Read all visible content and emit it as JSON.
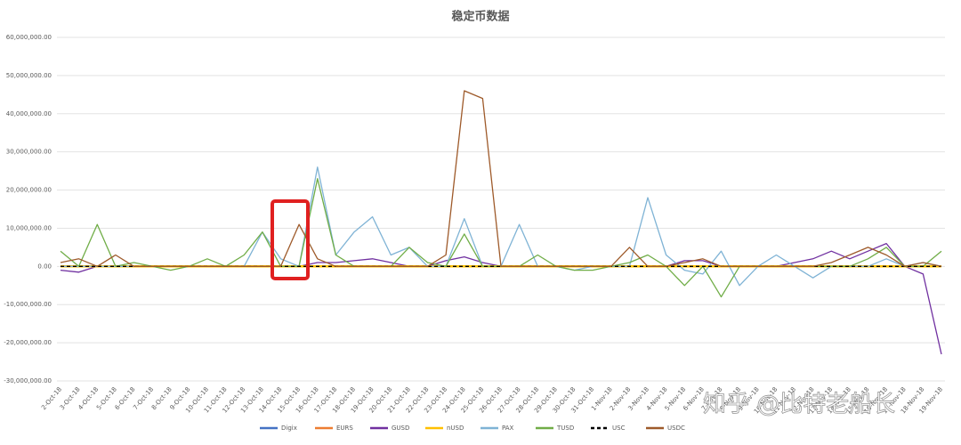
{
  "chart_data": {
    "type": "line",
    "title": "稳定币数据",
    "annotation": "知乎 @比特老船长",
    "categories": [
      "2-Oct-18",
      "3-Oct-18",
      "4-Oct-18",
      "5-Oct-18",
      "6-Oct-18",
      "7-Oct-18",
      "8-Oct-18",
      "9-Oct-18",
      "10-Oct-18",
      "11-Oct-18",
      "12-Oct-18",
      "13-Oct-18",
      "14-Oct-18",
      "15-Oct-18",
      "16-Oct-18",
      "17-Oct-18",
      "18-Oct-18",
      "19-Oct-18",
      "20-Oct-18",
      "21-Oct-18",
      "22-Oct-18",
      "23-Oct-18",
      "24-Oct-18",
      "25-Oct-18",
      "26-Oct-18",
      "27-Oct-18",
      "28-Oct-18",
      "29-Oct-18",
      "30-Oct-18",
      "31-Oct-18",
      "1-Nov-18",
      "2-Nov-18",
      "3-Nov-18",
      "4-Nov-18",
      "5-Nov-18",
      "6-Nov-18",
      "7-Nov-18",
      "8-Nov-18",
      "9-Nov-18",
      "10-Nov-18",
      "11-Nov-18",
      "12-Nov-18",
      "13-Nov-18",
      "14-Nov-18",
      "15-Nov-18",
      "16-Nov-18",
      "17-Nov-18",
      "18-Nov-18",
      "19-Nov-18"
    ],
    "series": [
      {
        "name": "Digix",
        "color": "#4472c4",
        "values": [
          0,
          0,
          0,
          0,
          0,
          0,
          0,
          0,
          0,
          0,
          0,
          0,
          0,
          0,
          0,
          0,
          0,
          0,
          0,
          0,
          0,
          0,
          0,
          0,
          0,
          0,
          0,
          0,
          0,
          0,
          0,
          0,
          0,
          0,
          0,
          0,
          0,
          0,
          0,
          0,
          0,
          0,
          0,
          0,
          0,
          0,
          0,
          0,
          0
        ]
      },
      {
        "name": "EURS",
        "color": "#ed7d31",
        "values": [
          0,
          0,
          0,
          0,
          0,
          0,
          0,
          0,
          0,
          0,
          0,
          0,
          0,
          0,
          0,
          0,
          0,
          0,
          0,
          0,
          0,
          0,
          0,
          0,
          0,
          0,
          0,
          0,
          0,
          0,
          0,
          0,
          0,
          0,
          0,
          0,
          0,
          0,
          0,
          0,
          0,
          0,
          0,
          0,
          0,
          0,
          0,
          0,
          0
        ]
      },
      {
        "name": "GUSD",
        "color": "#7030a0",
        "values": [
          -1000000,
          -1500000,
          0,
          0,
          0,
          0,
          0,
          0,
          0,
          0,
          0,
          0,
          0,
          0,
          1000000,
          1000000,
          1500000,
          2000000,
          1000000,
          0,
          0,
          1500000,
          2500000,
          1000000,
          0,
          0,
          0,
          0,
          0,
          0,
          0,
          0,
          0,
          0,
          1500000,
          1500000,
          0,
          0,
          0,
          0,
          1000000,
          2000000,
          4000000,
          2000000,
          4000000,
          6000000,
          0,
          -2000000,
          -23000000
        ]
      },
      {
        "name": "nUSD",
        "color": "#ffc000",
        "values": [
          0,
          0,
          0,
          0,
          0,
          0,
          0,
          0,
          0,
          0,
          0,
          0,
          0,
          0,
          0,
          0,
          0,
          0,
          0,
          0,
          0,
          0,
          0,
          0,
          0,
          0,
          0,
          0,
          0,
          0,
          0,
          0,
          0,
          0,
          0,
          0,
          0,
          0,
          0,
          0,
          0,
          0,
          0,
          0,
          0,
          0,
          0,
          0,
          0
        ]
      },
      {
        "name": "PAX",
        "color": "#7fb3d5",
        "values": [
          0,
          0,
          0,
          0,
          0,
          0,
          0,
          0,
          0,
          0,
          0,
          9000000,
          2000000,
          0,
          26000000,
          3000000,
          9000000,
          13000000,
          3000000,
          5000000,
          0,
          0,
          12500000,
          0,
          0,
          11000000,
          0,
          0,
          -1000000,
          0,
          0,
          0,
          18000000,
          3000000,
          -1000000,
          -2000000,
          4000000,
          -5000000,
          0,
          3000000,
          0,
          -3000000,
          0,
          0,
          0,
          2000000,
          0,
          1000000,
          0
        ]
      },
      {
        "name": "TUSD",
        "color": "#70ad47",
        "values": [
          4000000,
          0,
          11000000,
          0,
          1000000,
          0,
          -1000000,
          0,
          2000000,
          0,
          3000000,
          9000000,
          0,
          0,
          23000000,
          3000000,
          0,
          0,
          0,
          5000000,
          1000000,
          0,
          8500000,
          0,
          0,
          0,
          3000000,
          0,
          -1000000,
          -1000000,
          0,
          1000000,
          3000000,
          0,
          -5000000,
          0,
          -8000000,
          0,
          0,
          0,
          0,
          0,
          0,
          0,
          2000000,
          5000000,
          0,
          0,
          4000000
        ]
      },
      {
        "name": "USC",
        "color": "#000000",
        "dash": true,
        "values": [
          0,
          0,
          0,
          0,
          0,
          0,
          0,
          0,
          0,
          0,
          0,
          0,
          0,
          0,
          0,
          0,
          0,
          0,
          0,
          0,
          0,
          0,
          0,
          0,
          0,
          0,
          0,
          0,
          0,
          0,
          0,
          0,
          0,
          0,
          0,
          0,
          0,
          0,
          0,
          0,
          0,
          0,
          0,
          0,
          0,
          0,
          0,
          0,
          0
        ]
      },
      {
        "name": "USDC",
        "color": "#9e5a2a",
        "values": [
          1000000,
          2000000,
          0,
          3000000,
          0,
          0,
          0,
          0,
          0,
          0,
          0,
          0,
          0,
          11000000,
          2000000,
          0,
          0,
          0,
          0,
          0,
          0,
          3000000,
          46000000,
          44000000,
          0,
          0,
          0,
          0,
          0,
          0,
          0,
          5000000,
          0,
          0,
          1000000,
          2000000,
          0,
          0,
          0,
          0,
          0,
          0,
          1000000,
          3000000,
          5000000,
          3000000,
          0,
          1000000,
          0
        ]
      }
    ],
    "ylim": [
      -30000000,
      60000000
    ],
    "yticks": [
      {
        "value": -30000000,
        "label": "-30,000,000.00"
      },
      {
        "value": -20000000,
        "label": "-20,000,000.00"
      },
      {
        "value": -10000000,
        "label": "-10,000,000.00"
      },
      {
        "value": 0,
        "label": "0.00"
      },
      {
        "value": 10000000,
        "label": "10,000,000.00"
      },
      {
        "value": 20000000,
        "label": "20,000,000.00"
      },
      {
        "value": 30000000,
        "label": "30,000,000.00"
      },
      {
        "value": 40000000,
        "label": "40,000,000.00"
      },
      {
        "value": 50000000,
        "label": "50,000,000.00"
      },
      {
        "value": 60000000,
        "label": "60,000,000.00"
      }
    ],
    "grid": true
  }
}
